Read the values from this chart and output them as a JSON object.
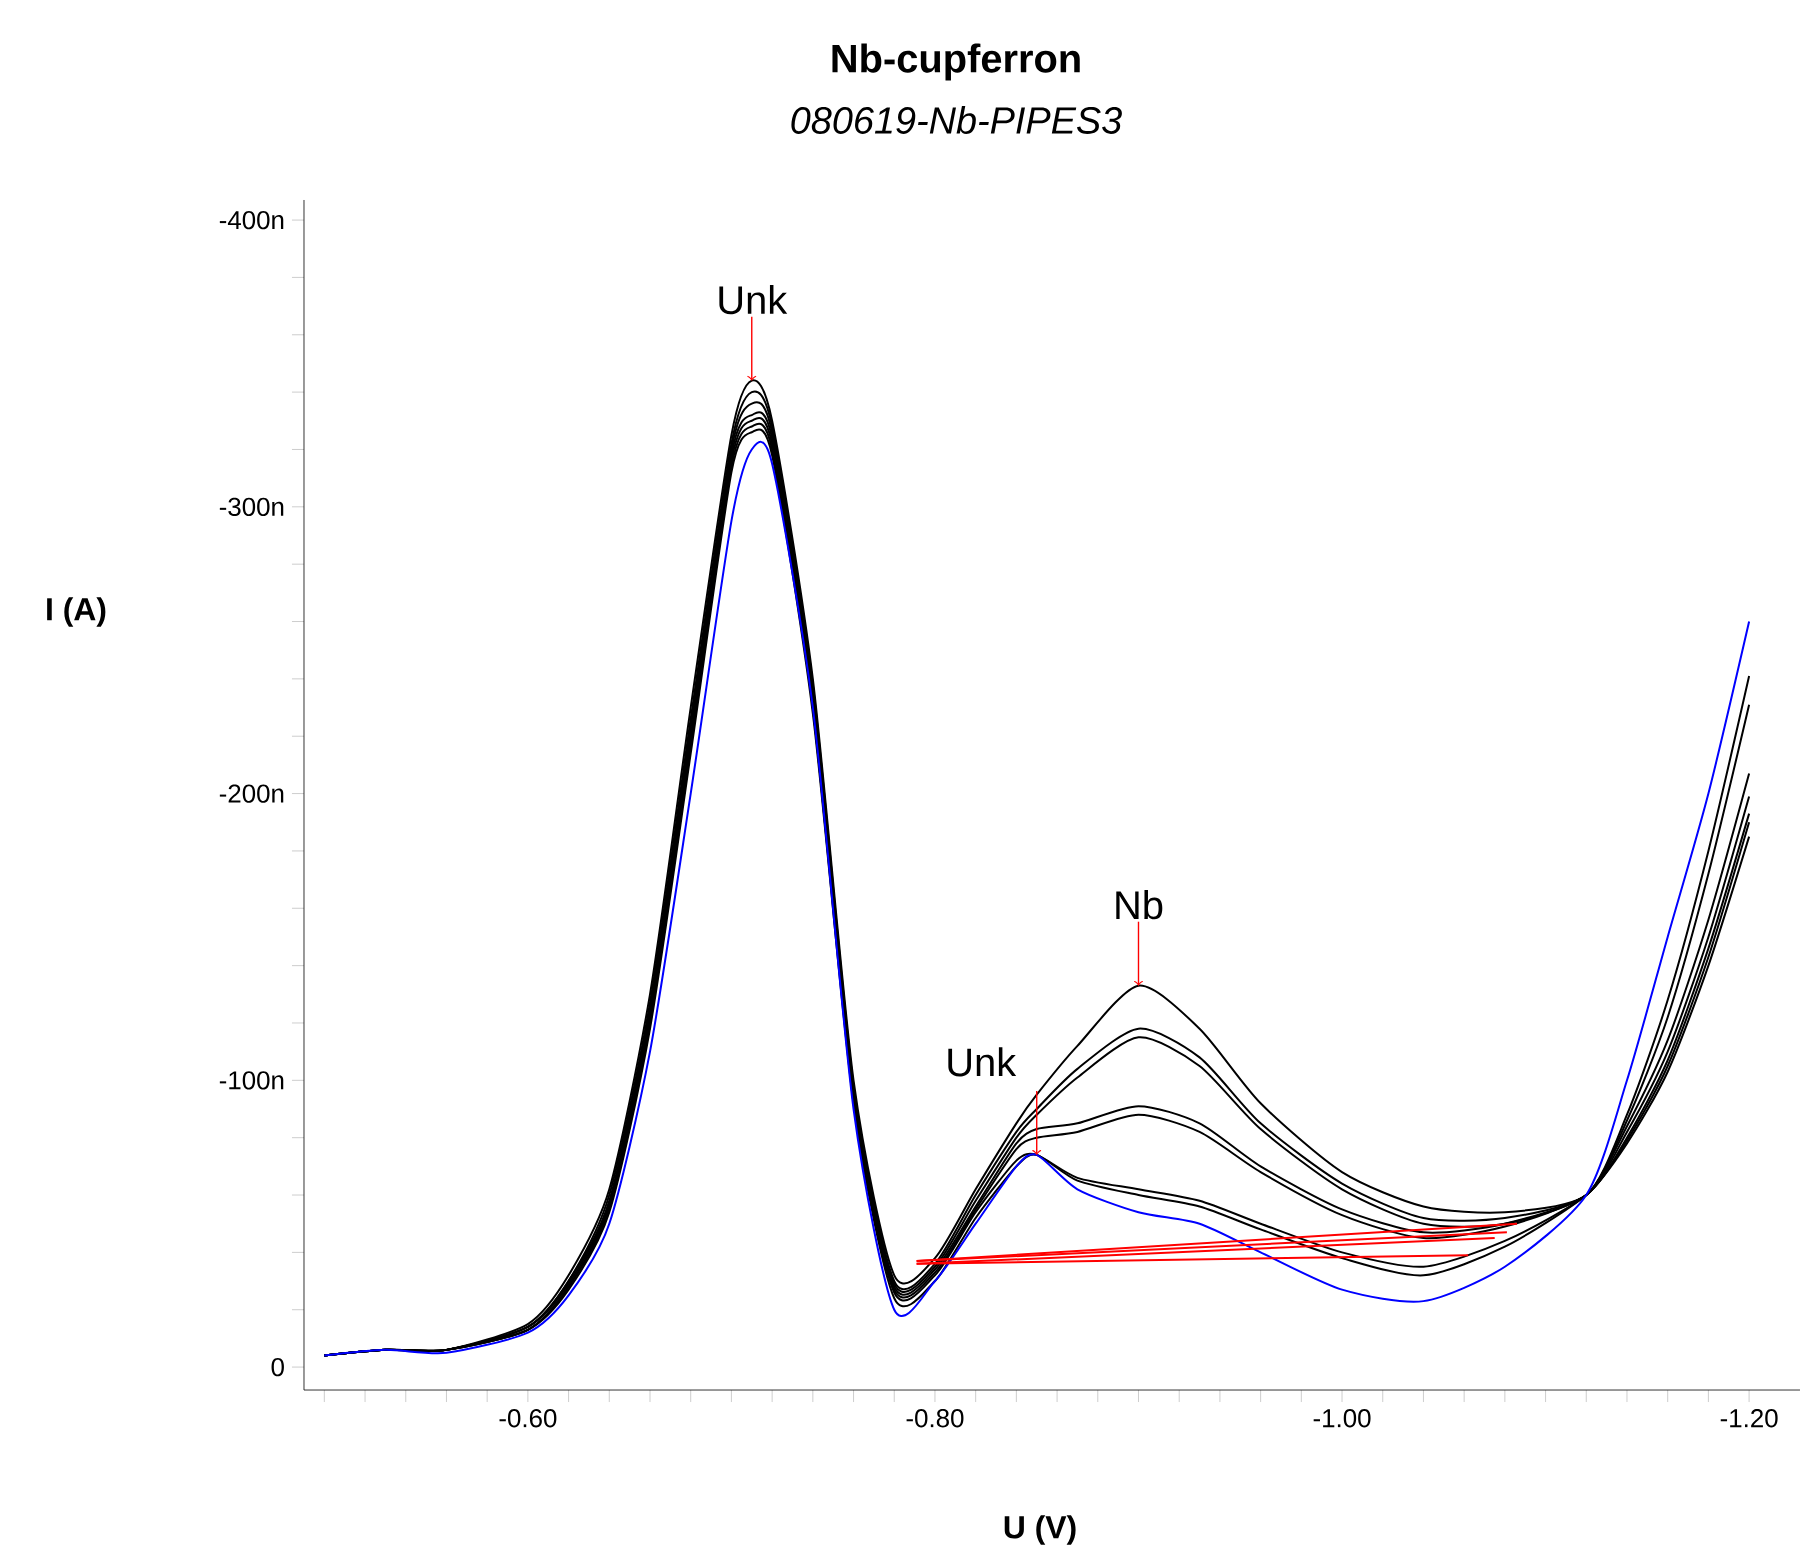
{
  "chart_data": {
    "type": "line",
    "title": "Nb-cupferron",
    "subtitle": "*080619-Nb-PIPES3*",
    "xlabel": "U (V)",
    "ylabel": "I (A)",
    "xlim": [
      -0.49,
      -1.225
    ],
    "ylim": [
      8,
      -407
    ],
    "xticks": [
      {
        "value": -0.5,
        "label": null
      },
      {
        "value": -0.52,
        "label": null
      },
      {
        "value": -0.54,
        "label": null
      },
      {
        "value": -0.56,
        "label": null
      },
      {
        "value": -0.58,
        "label": null
      },
      {
        "value": -0.6,
        "label": "-0.60"
      },
      {
        "value": -0.62,
        "label": null
      },
      {
        "value": -0.64,
        "label": null
      },
      {
        "value": -0.66,
        "label": null
      },
      {
        "value": -0.68,
        "label": null
      },
      {
        "value": -0.7,
        "label": null
      },
      {
        "value": -0.72,
        "label": null
      },
      {
        "value": -0.74,
        "label": null
      },
      {
        "value": -0.76,
        "label": null
      },
      {
        "value": -0.78,
        "label": null
      },
      {
        "value": -0.8,
        "label": "-0.80"
      },
      {
        "value": -0.82,
        "label": null
      },
      {
        "value": -0.84,
        "label": null
      },
      {
        "value": -0.86,
        "label": null
      },
      {
        "value": -0.88,
        "label": null
      },
      {
        "value": -0.9,
        "label": null
      },
      {
        "value": -0.92,
        "label": null
      },
      {
        "value": -0.94,
        "label": null
      },
      {
        "value": -0.96,
        "label": null
      },
      {
        "value": -0.98,
        "label": null
      },
      {
        "value": -1.0,
        "label": "-1.00"
      },
      {
        "value": -1.02,
        "label": null
      },
      {
        "value": -1.04,
        "label": null
      },
      {
        "value": -1.06,
        "label": null
      },
      {
        "value": -1.08,
        "label": null
      },
      {
        "value": -1.1,
        "label": null
      },
      {
        "value": -1.12,
        "label": null
      },
      {
        "value": -1.14,
        "label": null
      },
      {
        "value": -1.16,
        "label": null
      },
      {
        "value": -1.18,
        "label": null
      },
      {
        "value": -1.2,
        "label": "-1.20"
      }
    ],
    "yticks": [
      0,
      {
        "value": -20,
        "label": null
      },
      {
        "value": -40,
        "label": null
      },
      {
        "value": -60,
        "label": null
      },
      {
        "value": -80,
        "label": null
      },
      {
        "value": -100,
        "label": "-100n"
      },
      {
        "value": -120,
        "label": null
      },
      {
        "value": -140,
        "label": null
      },
      {
        "value": -160,
        "label": null
      },
      {
        "value": -180,
        "label": null
      },
      {
        "value": -200,
        "label": "-200n"
      },
      {
        "value": -220,
        "label": null
      },
      {
        "value": -240,
        "label": null
      },
      {
        "value": -260,
        "label": null
      },
      {
        "value": -280,
        "label": null
      },
      {
        "value": -300,
        "label": "-300n"
      },
      {
        "value": -320,
        "label": null
      },
      {
        "value": -340,
        "label": null
      },
      {
        "value": -360,
        "label": null
      },
      {
        "value": -380,
        "label": null
      },
      {
        "value": -400,
        "label": "-400n"
      }
    ],
    "x": [
      -0.5,
      -0.53,
      -0.56,
      -0.6,
      -0.62,
      -0.64,
      -0.66,
      -0.68,
      -0.7,
      -0.71,
      -0.72,
      -0.74,
      -0.76,
      -0.78,
      -0.8,
      -0.82,
      -0.84,
      -0.85,
      -0.87,
      -0.9,
      -0.93,
      -0.96,
      -1.0,
      -1.04,
      -1.08,
      -1.12,
      -1.14,
      -1.16,
      -1.18,
      -1.2
    ],
    "series": [
      {
        "color": "#000000",
        "values": [
          -4,
          -6,
          -6,
          -15,
          -32,
          -62,
          -130,
          -230,
          -325,
          -344,
          -330,
          -240,
          -100,
          -32,
          -38,
          -62,
          -85,
          -95,
          -112,
          -133,
          -118,
          -92,
          -68,
          -56,
          -54,
          -60,
          -88,
          -128,
          -180,
          -241
        ]
      },
      {
        "color": "#000000",
        "values": [
          -4,
          -6,
          -6,
          -14,
          -30,
          -60,
          -127,
          -226,
          -322,
          -340,
          -328,
          -238,
          -98,
          -30,
          -36,
          -60,
          -82,
          -90,
          -104,
          -118,
          -108,
          -85,
          -64,
          -52,
          -52,
          -60,
          -86,
          -122,
          -172,
          -231
        ]
      },
      {
        "color": "#000000",
        "values": [
          -4,
          -6,
          -6,
          -14,
          -30,
          -58,
          -125,
          -223,
          -320,
          -336,
          -326,
          -236,
          -96,
          -29,
          -35,
          -58,
          -80,
          -88,
          -101,
          -115,
          -105,
          -83,
          -62,
          -50,
          -50,
          -60,
          -84,
          -114,
          -156,
          -207
        ]
      },
      {
        "color": "#000000",
        "values": [
          -4,
          -6,
          -6,
          -14,
          -29,
          -57,
          -123,
          -220,
          -318,
          -332,
          -324,
          -234,
          -95,
          -28,
          -34,
          -56,
          -78,
          -83,
          -85,
          -91,
          -85,
          -70,
          -55,
          -47,
          -50,
          -60,
          -82,
          -110,
          -150,
          -199
        ]
      },
      {
        "color": "#000000",
        "values": [
          -4,
          -6,
          -6,
          -13,
          -28,
          -56,
          -121,
          -218,
          -316,
          -330,
          -322,
          -232,
          -94,
          -27,
          -33,
          -55,
          -76,
          -80,
          -82,
          -88,
          -82,
          -68,
          -53,
          -45,
          -49,
          -60,
          -80,
          -107,
          -146,
          -193
        ]
      },
      {
        "color": "#000000",
        "values": [
          -4,
          -6,
          -6,
          -13,
          -28,
          -55,
          -120,
          -216,
          -314,
          -328,
          -320,
          -230,
          -93,
          -26,
          -32,
          -54,
          -72,
          -74,
          -66,
          -62,
          -58,
          -50,
          -40,
          -35,
          -44,
          -60,
          -79,
          -105,
          -143,
          -190
        ]
      },
      {
        "color": "#000000",
        "values": [
          -4,
          -6,
          -6,
          -13,
          -27,
          -54,
          -118,
          -214,
          -312,
          -326,
          -318,
          -228,
          -92,
          -24,
          -30,
          -52,
          -70,
          -74,
          -65,
          -60,
          -56,
          -48,
          -38,
          -32,
          -42,
          -60,
          -78,
          -103,
          -140,
          -185
        ]
      },
      {
        "color": "#0000ff",
        "values": [
          -4,
          -6,
          -5,
          -12,
          -25,
          -50,
          -110,
          -200,
          -295,
          -320,
          -315,
          -230,
          -90,
          -20,
          -30,
          -50,
          -70,
          -74,
          -62,
          -54,
          -50,
          -40,
          -27,
          -23,
          -35,
          -60,
          -100,
          -150,
          -200,
          -260
        ]
      },
      {
        "type": "line",
        "color": "#ff0000",
        "x": [
          -0.791,
          -1.062
        ],
        "values": [
          -36,
          -39
        ]
      },
      {
        "type": "line",
        "color": "#ff0000",
        "x": [
          -0.791,
          -1.075
        ],
        "values": [
          -36,
          -45
        ]
      },
      {
        "type": "line",
        "color": "#ff0000",
        "x": [
          -0.791,
          -1.081
        ],
        "values": [
          -37,
          -47
        ]
      },
      {
        "type": "line",
        "color": "#ff0000",
        "x": [
          -0.791,
          -1.086
        ],
        "values": [
          -37,
          -50
        ]
      }
    ],
    "annotations": [
      {
        "text": "Unk",
        "x": -0.71,
        "y": -344
      },
      {
        "text": "Nb",
        "x": -0.9,
        "y": -133
      },
      {
        "text": "Unk",
        "x": -0.85,
        "y": -74
      }
    ]
  }
}
